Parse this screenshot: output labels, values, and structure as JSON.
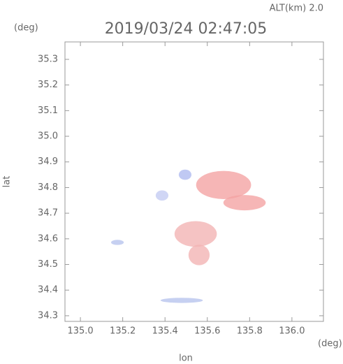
{
  "chart_data": {
    "type": "echo-map",
    "title": "2019/03/24 02:47:05",
    "altitude_label": "ALT(km) 2.0",
    "y_unit": "(deg)",
    "x_unit": "(deg)",
    "x_label": "lon",
    "y_label": "lat",
    "xlim": [
      134.927,
      136.149
    ],
    "ylim": [
      34.278,
      35.368
    ],
    "xticks": [
      {
        "value": 135.0,
        "label": "135.0"
      },
      135.2,
      135.4,
      135.6,
      135.8,
      {
        "value": 136.0,
        "label": "136.0"
      }
    ],
    "yticks": [
      35.3,
      35.2,
      35.1,
      {
        "value": 35.0,
        "label": "35.0"
      },
      34.9,
      34.8,
      34.7,
      34.6,
      34.5,
      34.4,
      34.3
    ],
    "echoes": [
      {
        "lon": 135.677,
        "lat": 34.81,
        "rx": 0.13,
        "ry": 0.055,
        "color": "#f4a4a4"
      },
      {
        "lon": 135.776,
        "lat": 34.741,
        "rx": 0.1,
        "ry": 0.03,
        "color": "#f4a4a4"
      },
      {
        "lon": 135.545,
        "lat": 34.619,
        "rx": 0.1,
        "ry": 0.05,
        "color": "#f2b4b4"
      },
      {
        "lon": 135.561,
        "lat": 34.537,
        "rx": 0.05,
        "ry": 0.04,
        "color": "#f2b4b4"
      },
      {
        "lon": 135.175,
        "lat": 34.586,
        "rx": 0.03,
        "ry": 0.01,
        "color": "#b8c4ee"
      },
      {
        "lon": 135.386,
        "lat": 34.769,
        "rx": 0.03,
        "ry": 0.02,
        "color": "#c4ccf2"
      },
      {
        "lon": 135.479,
        "lat": 34.36,
        "rx": 0.1,
        "ry": 0.01,
        "color": "#b8c4ee"
      },
      {
        "lon": 135.495,
        "lat": 34.85,
        "rx": 0.03,
        "ry": 0.02,
        "color": "#b0bcf0"
      }
    ]
  }
}
